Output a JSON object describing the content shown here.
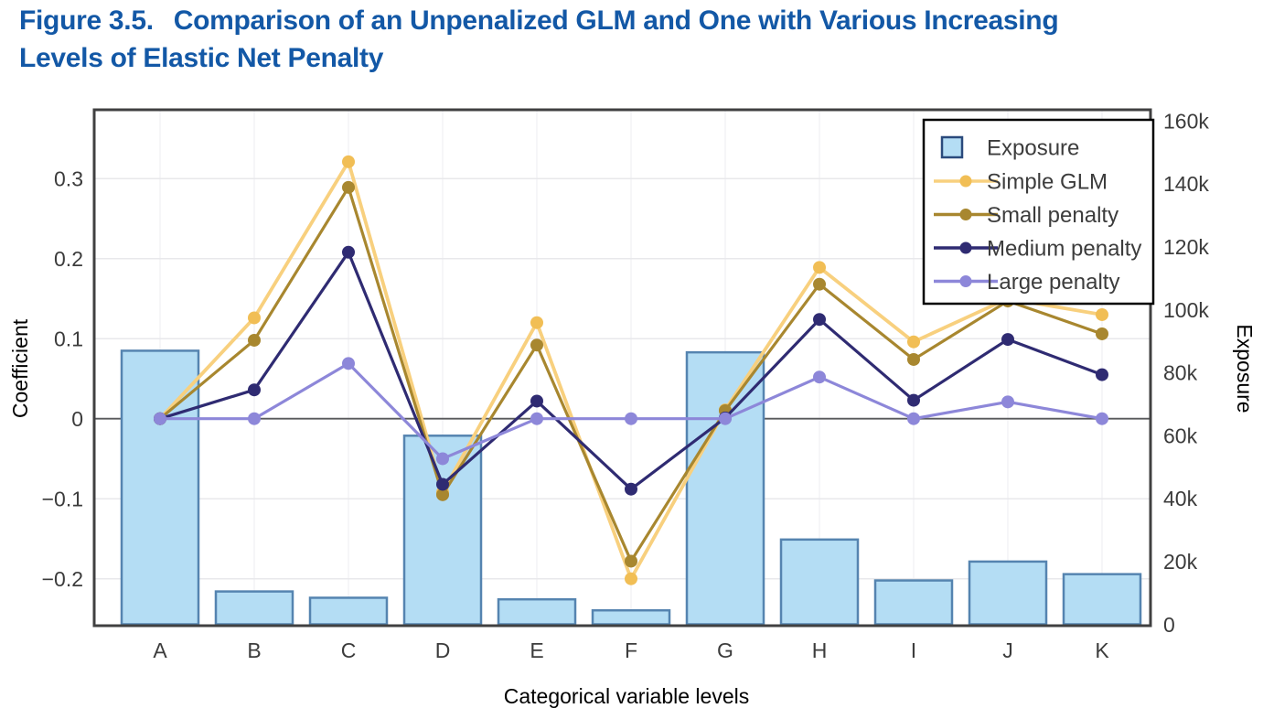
{
  "figure": {
    "label": "Figure 3.5.",
    "title_line1_rest": "Comparison of an Unpenalized GLM and One with Various Increasing",
    "title_line2": "Levels of Elastic Net Penalty"
  },
  "colors": {
    "title": "#1358A6",
    "text": "#3C3C3C",
    "grid": "#E8E8EB",
    "grid_vertical": "#F1F1F4",
    "zero_line": "#58595B",
    "plot_border": "#404041",
    "legend_border": "#000000",
    "legend_background": "#FFFFFF",
    "legend_swatch_border": "#2A4A7C"
  },
  "chart_data": {
    "type": "bar+line combo",
    "categories": [
      "A",
      "B",
      "C",
      "D",
      "E",
      "F",
      "G",
      "H",
      "I",
      "J",
      "K"
    ],
    "xlabel": "Categorical variable levels",
    "grid": true,
    "zero_line": true,
    "y_left": {
      "label": "Coefficient",
      "ticks": [
        {
          "label": "0.3",
          "value": 0.3
        },
        {
          "label": "0.2",
          "value": 0.2
        },
        {
          "label": "0.1",
          "value": 0.1
        },
        {
          "label": "0",
          "value": 0
        },
        {
          "label": "−0.1",
          "value": -0.1
        },
        {
          "label": "−0.2",
          "value": -0.2
        }
      ]
    },
    "y_right": {
      "label": "Exposure",
      "max": 160000,
      "ticks": [
        {
          "label": "160k",
          "value": 160000
        },
        {
          "label": "140k",
          "value": 140000
        },
        {
          "label": "120k",
          "value": 120000
        },
        {
          "label": "100k",
          "value": 100000
        },
        {
          "label": "80k",
          "value": 80000
        },
        {
          "label": "60k",
          "value": 60000
        },
        {
          "label": "40k",
          "value": 40000
        },
        {
          "label": "20k",
          "value": 20000
        },
        {
          "label": "0",
          "value": 0
        }
      ]
    },
    "bars": {
      "name": "Exposure",
      "fill": "#B4DDF4",
      "stroke": "#5584B0",
      "values": [
        87000,
        10500,
        8500,
        60000,
        8000,
        4500,
        86500,
        27000,
        14000,
        20000,
        16000
      ]
    },
    "series": [
      {
        "name": "Simple GLM",
        "color": "#F8D07E",
        "dot_color": "#F1BE55",
        "values": [
          0,
          0.126,
          0.321,
          -0.092,
          0.12,
          -0.2,
          0.011,
          0.189,
          0.096,
          0.15,
          0.13
        ]
      },
      {
        "name": "Small penalty",
        "color": "#A8872F",
        "dot_color": "#A8872F",
        "values": [
          0,
          0.098,
          0.289,
          -0.095,
          0.092,
          -0.178,
          0.01,
          0.168,
          0.074,
          0.147,
          0.106
        ]
      },
      {
        "name": "Medium penalty",
        "color": "#2F2B72",
        "dot_color": "#2F2B72",
        "values": [
          0,
          0.036,
          0.208,
          -0.082,
          0.022,
          -0.088,
          0.001,
          0.124,
          0.023,
          0.099,
          0.055
        ]
      },
      {
        "name": "Large penalty",
        "color": "#8D87D9",
        "dot_color": "#8D87D9",
        "values": [
          0,
          0.0,
          0.069,
          -0.05,
          0.0,
          0.0,
          0.0,
          0.052,
          0.0,
          0.021,
          0.0
        ]
      }
    ],
    "legend": {
      "position": "top-right",
      "entries": [
        "Exposure",
        "Simple GLM",
        "Small penalty",
        "Medium penalty",
        "Large penalty"
      ]
    }
  }
}
